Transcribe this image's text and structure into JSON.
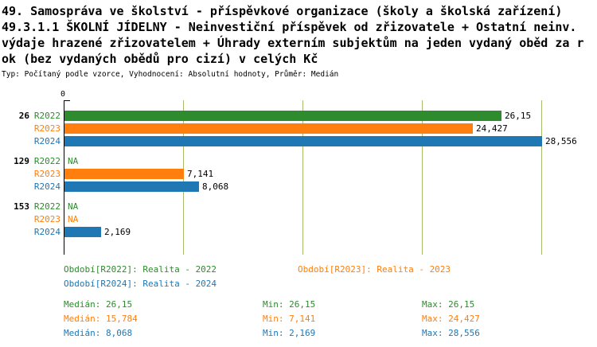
{
  "header": {
    "title_lines": [
      "49. Samospráva ve školství - příspěvkové organizace (školy a školská zařízení)",
      "49.3.1.1 ŠKOLNÍ JÍDELNY - Neinvestiční příspěvek od zřizovatele + Ostatní neinv.",
      "výdaje hrazené zřizovatelem + Úhrady externím subjektům na jeden vydaný oběd za r",
      "ok (bez vydaných obědů pro cizí) v celých Kč"
    ],
    "meta": "Typ: Počítaný podle vzorce, Vyhodnocení: Absolutní hodnoty, Průměr: Medián"
  },
  "chart_data": {
    "type": "bar",
    "orientation": "horizontal",
    "axis_origin_label": "0",
    "xlim": [
      0,
      28.571
    ],
    "grid": true,
    "gridline_color": "#a5bd6b",
    "categories": [
      "26",
      "129",
      "153"
    ],
    "series_colors": {
      "R2022": "#2e8b2e",
      "R2023": "#ff7f0e",
      "R2024": "#1f77b4"
    },
    "groups": [
      {
        "label": "26",
        "bars": [
          {
            "series": "R2022",
            "value": 26.15,
            "display": "26,15"
          },
          {
            "series": "R2023",
            "value": 24.427,
            "display": "24,427"
          },
          {
            "series": "R2024",
            "value": 28.556,
            "display": "28,556"
          }
        ]
      },
      {
        "label": "129",
        "bars": [
          {
            "series": "R2022",
            "value": null,
            "display": "NA"
          },
          {
            "series": "R2023",
            "value": 7.141,
            "display": "7,141"
          },
          {
            "series": "R2024",
            "value": 8.068,
            "display": "8,068"
          }
        ]
      },
      {
        "label": "153",
        "bars": [
          {
            "series": "R2022",
            "value": null,
            "display": "NA"
          },
          {
            "series": "R2023",
            "value": null,
            "display": "NA"
          },
          {
            "series": "R2024",
            "value": 2.169,
            "display": "2,169"
          }
        ]
      }
    ],
    "legend": [
      {
        "label": "Období[R2022]: Realita - 2022",
        "color": "#2e8b2e"
      },
      {
        "label": "Období[R2023]: Realita - 2023",
        "color": "#ff7f0e"
      },
      {
        "label": "Období[R2024]: Realita - 2024",
        "color": "#1f77b4"
      }
    ],
    "stats": [
      {
        "color": "#2e8b2e",
        "median": "Medián: 26,15",
        "min": "Min: 26,15",
        "max": "Max: 26,15"
      },
      {
        "color": "#ff7f0e",
        "median": "Medián: 15,784",
        "min": "Min: 7,141",
        "max": "Max: 24,427"
      },
      {
        "color": "#1f77b4",
        "median": "Medián: 8,068",
        "min": "Min: 2,169",
        "max": "Max: 28,556"
      }
    ]
  }
}
